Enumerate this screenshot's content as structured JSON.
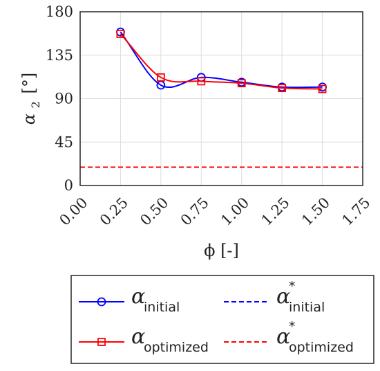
{
  "chart_data": {
    "type": "line",
    "xlabel": "ϕ [-]",
    "ylabel_symbol": "α",
    "ylabel_sub": "2",
    "ylabel_unit": "[°]",
    "xlim": [
      0.0,
      1.75
    ],
    "ylim": [
      0,
      180
    ],
    "xticks": [
      "0.00",
      "0.25",
      "0.50",
      "0.75",
      "1.00",
      "1.25",
      "1.50",
      "1.75"
    ],
    "yticks": [
      "0",
      "45",
      "90",
      "135",
      "180"
    ],
    "x": [
      0.25,
      0.5,
      0.75,
      1.0,
      1.25,
      1.5
    ],
    "grid": true,
    "series": [
      {
        "symbol": "α",
        "sub": "initial",
        "sup": "",
        "values": [
          159,
          104,
          112,
          107,
          102,
          102
        ],
        "color": "#0000ff",
        "marker": "circle",
        "dash": false
      },
      {
        "symbol": "α",
        "sub": "optimized",
        "sup": "",
        "values": [
          157,
          112,
          108,
          106,
          101,
          100
        ],
        "color": "#ff0000",
        "marker": "square",
        "dash": false
      },
      {
        "symbol": "α",
        "sub": "initial",
        "sup": "*",
        "constant": 19,
        "color": "#0000ff",
        "marker": "none",
        "dash": true
      },
      {
        "symbol": "α",
        "sub": "optimized",
        "sup": "*",
        "constant": 19,
        "color": "#ff0000",
        "marker": "none",
        "dash": true
      }
    ],
    "legend_position": "bottom-outside"
  }
}
